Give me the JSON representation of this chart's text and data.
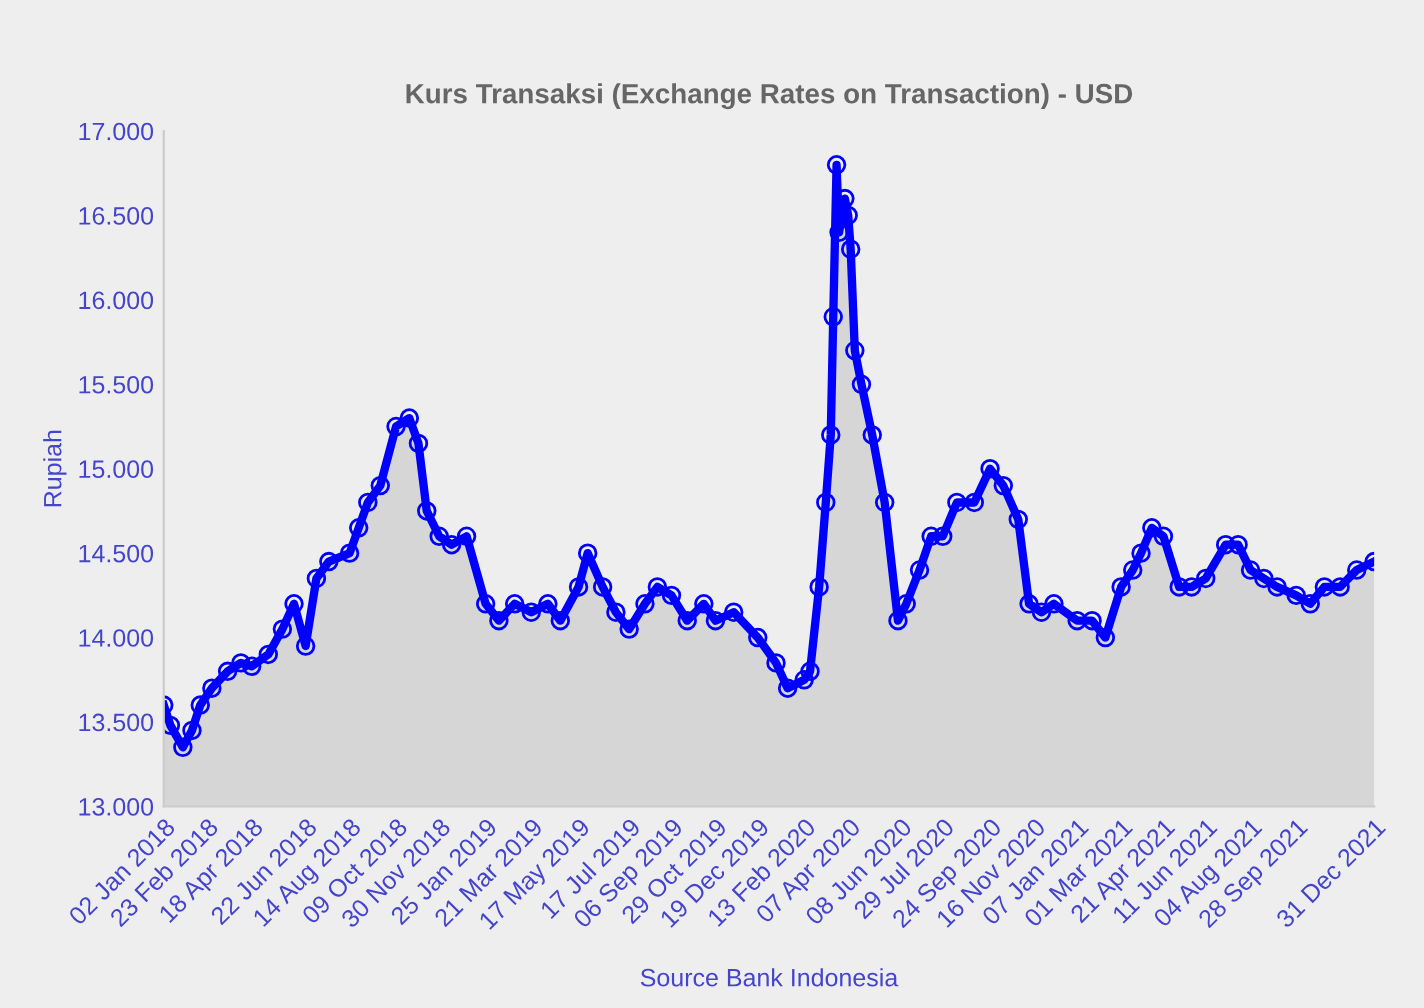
{
  "chart_data": {
    "type": "area",
    "title": "Kurs Transaksi (Exchange Rates on Transaction) - USD",
    "ylabel": "Rupiah",
    "xlabel": "Source Bank Indonesia",
    "marker": "circle",
    "grid": false,
    "x": [
      "2018-01-02",
      "2018-01-10",
      "2018-01-25",
      "2018-02-05",
      "2018-02-15",
      "2018-03-01",
      "2018-03-20",
      "2018-04-05",
      "2018-04-18",
      "2018-05-08",
      "2018-05-25",
      "2018-06-08",
      "2018-06-22",
      "2018-07-05",
      "2018-07-20",
      "2018-08-14",
      "2018-08-25",
      "2018-09-05",
      "2018-09-20",
      "2018-10-09",
      "2018-10-25",
      "2018-11-05",
      "2018-11-15",
      "2018-11-30",
      "2018-12-15",
      "2019-01-02",
      "2019-01-25",
      "2019-02-10",
      "2019-03-01",
      "2019-03-21",
      "2019-04-10",
      "2019-04-25",
      "2019-05-17",
      "2019-05-28",
      "2019-06-15",
      "2019-07-01",
      "2019-07-17",
      "2019-08-05",
      "2019-08-20",
      "2019-09-06",
      "2019-09-25",
      "2019-10-15",
      "2019-10-29",
      "2019-11-20",
      "2019-12-19",
      "2020-01-10",
      "2020-01-24",
      "2020-02-13",
      "2020-02-20",
      "2020-03-02",
      "2020-03-10",
      "2020-03-16",
      "2020-03-19",
      "2020-03-23",
      "2020-03-26",
      "2020-04-02",
      "2020-04-06",
      "2020-04-09",
      "2020-04-14",
      "2020-04-22",
      "2020-05-05",
      "2020-05-20",
      "2020-06-05",
      "2020-06-15",
      "2020-07-01",
      "2020-07-15",
      "2020-07-29",
      "2020-08-15",
      "2020-09-05",
      "2020-09-24",
      "2020-10-10",
      "2020-10-28",
      "2020-11-10",
      "2020-11-25",
      "2020-12-10",
      "2021-01-07",
      "2021-01-25",
      "2021-02-10",
      "2021-03-01",
      "2021-03-15",
      "2021-03-25",
      "2021-04-07",
      "2021-04-21",
      "2021-05-10",
      "2021-05-25",
      "2021-06-11",
      "2021-07-05",
      "2021-07-20",
      "2021-08-04",
      "2021-08-20",
      "2021-09-05",
      "2021-09-28",
      "2021-10-15",
      "2021-11-01",
      "2021-11-20",
      "2021-12-10",
      "2021-12-31"
    ],
    "series": [
      {
        "color": "#0000ff",
        "values": [
          13600,
          13480,
          13350,
          13450,
          13600,
          13700,
          13800,
          13850,
          13830,
          13900,
          14050,
          14200,
          13950,
          14350,
          14450,
          14500,
          14650,
          14800,
          14900,
          15250,
          15300,
          15150,
          14750,
          14600,
          14550,
          14600,
          14200,
          14100,
          14200,
          14150,
          14200,
          14100,
          14300,
          14500,
          14300,
          14150,
          14050,
          14200,
          14300,
          14250,
          14100,
          14200,
          14100,
          14150,
          14000,
          13850,
          13700,
          13750,
          13800,
          14300,
          14800,
          15200,
          15900,
          16800,
          16400,
          16600,
          16500,
          16300,
          15700,
          15500,
          15200,
          14800,
          14100,
          14200,
          14400,
          14600,
          14600,
          14800,
          14800,
          15000,
          14900,
          14700,
          14200,
          14150,
          14200,
          14100,
          14100,
          14000,
          14300,
          14400,
          14500,
          14650,
          14600,
          14300,
          14300,
          14350,
          14550,
          14550,
          14400,
          14350,
          14300,
          14250,
          14200,
          14300,
          14300,
          14400,
          14450
        ]
      }
    ],
    "ylim": [
      13000,
      17000
    ],
    "yticks": [
      {
        "value": 13000,
        "label": "13.000"
      },
      {
        "value": 13500,
        "label": "13.500"
      },
      {
        "value": 14000,
        "label": "14.000"
      },
      {
        "value": 14500,
        "label": "14.500"
      },
      {
        "value": 15000,
        "label": "15.000"
      },
      {
        "value": 15500,
        "label": "15.500"
      },
      {
        "value": 16000,
        "label": "16.000"
      },
      {
        "value": 16500,
        "label": "16.500"
      },
      {
        "value": 17000,
        "label": "17.000"
      }
    ],
    "xlim": [
      "2018-01-02",
      "2021-12-31"
    ],
    "xticks": [
      {
        "value": "2018-01-02",
        "label": "02 Jan 2018"
      },
      {
        "value": "2018-02-23",
        "label": "23 Feb 2018"
      },
      {
        "value": "2018-04-18",
        "label": "18 Apr 2018"
      },
      {
        "value": "2018-06-22",
        "label": "22 Jun 2018"
      },
      {
        "value": "2018-08-14",
        "label": "14 Aug 2018"
      },
      {
        "value": "2018-10-09",
        "label": "09 Oct 2018"
      },
      {
        "value": "2018-11-30",
        "label": "30 Nov 2018"
      },
      {
        "value": "2019-01-25",
        "label": "25 Jan 2019"
      },
      {
        "value": "2019-03-21",
        "label": "21 Mar 2019"
      },
      {
        "value": "2019-05-17",
        "label": "17 May 2019"
      },
      {
        "value": "2019-07-17",
        "label": "17 Jul 2019"
      },
      {
        "value": "2019-09-06",
        "label": "06 Sep 2019"
      },
      {
        "value": "2019-10-29",
        "label": "29 Oct 2019"
      },
      {
        "value": "2019-12-19",
        "label": "19 Dec 2019"
      },
      {
        "value": "2020-02-13",
        "label": "13 Feb 2020"
      },
      {
        "value": "2020-04-07",
        "label": "07 Apr 2020"
      },
      {
        "value": "2020-06-08",
        "label": "08 Jun 2020"
      },
      {
        "value": "2020-07-29",
        "label": "29 Jul 2020"
      },
      {
        "value": "2020-09-24",
        "label": "24 Sep 2020"
      },
      {
        "value": "2020-11-16",
        "label": "16 Nov 2020"
      },
      {
        "value": "2021-01-07",
        "label": "07 Jan 2021"
      },
      {
        "value": "2021-03-01",
        "label": "01 Mar 2021"
      },
      {
        "value": "2021-04-21",
        "label": "21 Apr 2021"
      },
      {
        "value": "2021-06-11",
        "label": "11 Jun 2021"
      },
      {
        "value": "2021-08-04",
        "label": "04 Aug 2021"
      },
      {
        "value": "2021-09-28",
        "label": "28 Sep 2021"
      },
      {
        "value": "2021-12-31",
        "label": "31 Dec 2021"
      }
    ]
  }
}
